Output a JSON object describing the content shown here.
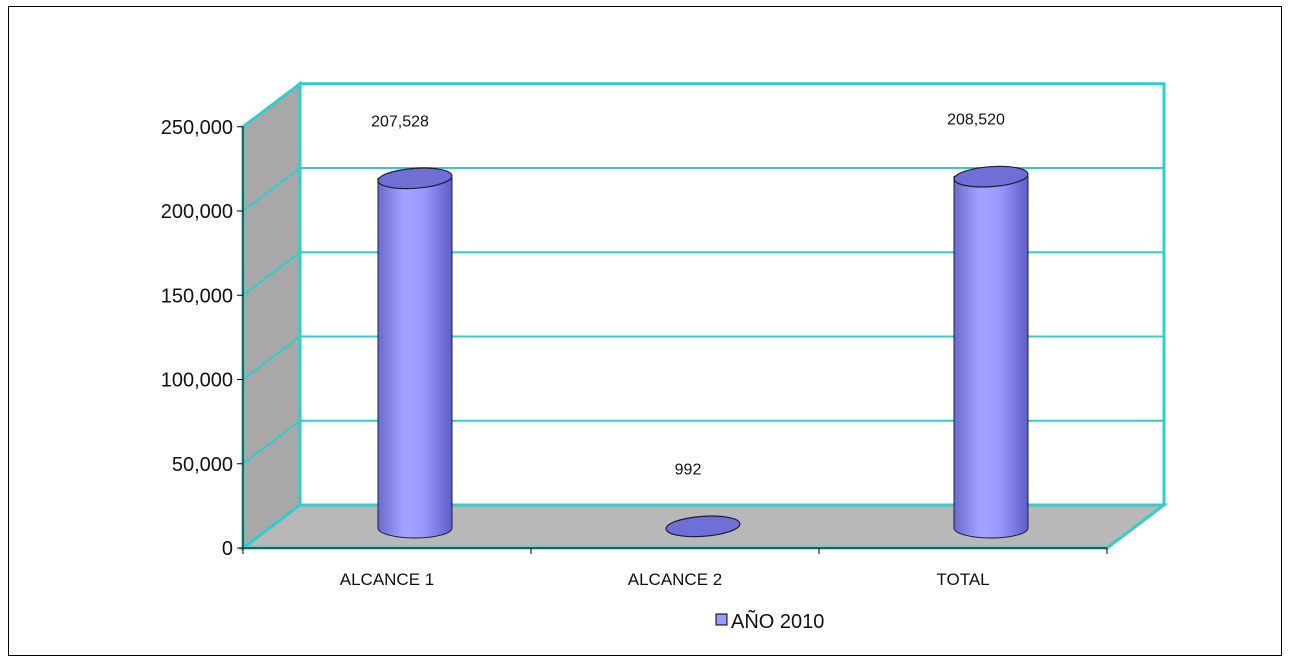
{
  "chart_data": {
    "type": "bar",
    "style": "3d-cylinder",
    "categories": [
      "ALCANCE 1",
      "ALCANCE 2",
      "TOTAL"
    ],
    "series": [
      {
        "name": "AÑO 2010",
        "values": [
          207528,
          992,
          208520
        ]
      }
    ],
    "data_labels": [
      "207,528",
      "992",
      "208,520"
    ],
    "y_ticks": [
      "0",
      "50,000",
      "100,000",
      "150,000",
      "200,000",
      "250,000"
    ],
    "y_tick_values": [
      0,
      50000,
      100000,
      150000,
      200000,
      250000
    ],
    "ylim": [
      0,
      250000
    ],
    "title": "",
    "xlabel": "",
    "ylabel": "",
    "grid": true,
    "legend_position": "bottom",
    "colors": {
      "bar": "#9999ff",
      "bar_top": "#6f6fd6",
      "gridline": "#33cccc",
      "wall": "#ffffff",
      "side_wall": "#a8a8a8",
      "floor": "#b8b8b8",
      "axis": "#000000"
    }
  }
}
